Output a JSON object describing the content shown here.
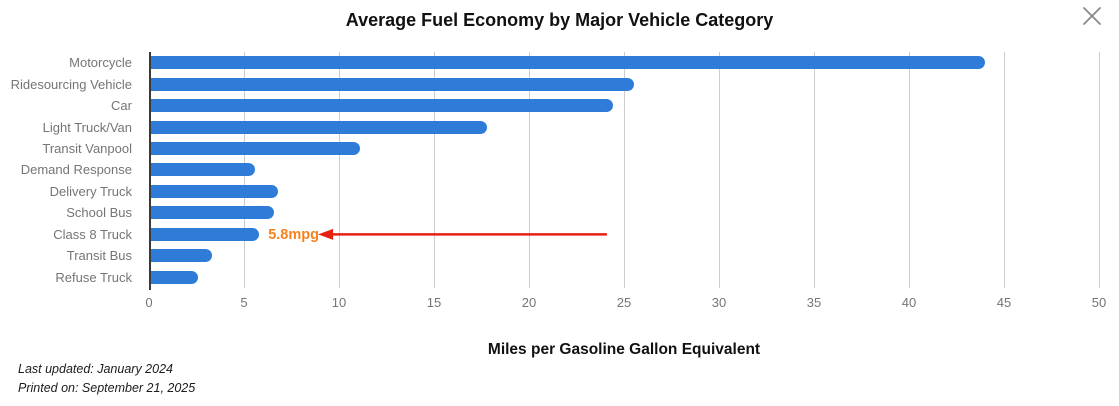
{
  "chart_data": {
    "type": "bar",
    "orientation": "horizontal",
    "title": "Average Fuel Economy by Major Vehicle Category",
    "xlabel": "Miles per Gasoline Gallon Equivalent",
    "categories": [
      "Motorcycle",
      "Ridesourcing Vehicle",
      "Car",
      "Light Truck/Van",
      "Transit Vanpool",
      "Demand Response",
      "Delivery Truck",
      "School Bus",
      "Class 8 Truck",
      "Transit Bus",
      "Refuse Truck"
    ],
    "values": [
      44.0,
      25.5,
      24.4,
      17.8,
      11.1,
      5.6,
      6.8,
      6.6,
      5.8,
      3.3,
      2.6
    ],
    "xlim": [
      0,
      50
    ],
    "xticks": [
      0,
      5,
      10,
      15,
      20,
      25,
      30,
      35,
      40,
      45,
      50
    ],
    "grid": true,
    "legend": false,
    "colors": {
      "bar": "#2F7CD8",
      "grid": "#cccccc",
      "axis_line": "#3a3a3a",
      "tick_label": "#757575",
      "category_label": "#757575",
      "title": "#111111",
      "annotation_text": "#F5821F",
      "annotation_arrow": "#E82112"
    },
    "annotation": {
      "text": "5.8mpg",
      "target_category": "Class 8 Truck",
      "arrow_tail_value": 24.1,
      "arrow_head_value": 8.9
    }
  },
  "window": {
    "close_icon": "close"
  },
  "footer": {
    "last_updated": "Last updated: January 2024",
    "printed_on": "Printed on: September 21, 2025"
  }
}
